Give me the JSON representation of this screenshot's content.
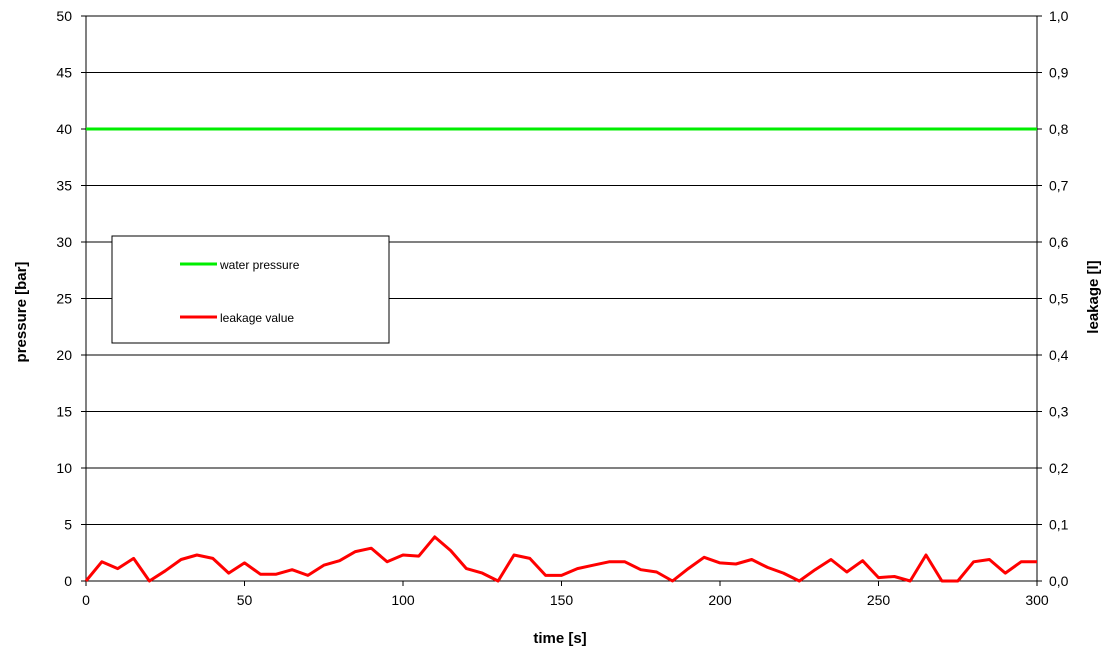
{
  "chart_data": {
    "type": "line",
    "title": "",
    "xlabel": "time [s]",
    "ylabel_left": "pressure [bar]",
    "ylabel_right": "leakage [l]",
    "xlim": [
      0,
      300
    ],
    "ylim_left": [
      0,
      50
    ],
    "ylim_right": [
      0,
      1.0
    ],
    "x_ticks": [
      "0",
      "50",
      "100",
      "150",
      "200",
      "250",
      "300"
    ],
    "y_left_ticks": [
      "0",
      "5",
      "10",
      "15",
      "20",
      "25",
      "30",
      "35",
      "40",
      "45",
      "50"
    ],
    "y_right_ticks": [
      "0,0",
      "0,1",
      "0,2",
      "0,3",
      "0,4",
      "0,5",
      "0,6",
      "0,7",
      "0,8",
      "0,9",
      "1,0"
    ],
    "grid": "horizontal",
    "legend_position": "left-middle",
    "series": [
      {
        "name": "water pressure",
        "axis": "left",
        "color": "#00ee00",
        "x": [
          0,
          50,
          100,
          150,
          200,
          250,
          300
        ],
        "values": [
          40,
          40,
          40,
          40,
          40,
          40,
          40
        ]
      },
      {
        "name": "leakage value",
        "axis": "left",
        "color": "#ff0000",
        "x": [
          0,
          5,
          10,
          15,
          20,
          25,
          30,
          35,
          40,
          45,
          50,
          55,
          60,
          65,
          70,
          75,
          80,
          85,
          90,
          95,
          100,
          105,
          110,
          115,
          120,
          125,
          130,
          135,
          140,
          145,
          150,
          155,
          160,
          165,
          170,
          175,
          180,
          185,
          190,
          195,
          200,
          205,
          210,
          215,
          220,
          225,
          230,
          235,
          240,
          245,
          250,
          255,
          260,
          265,
          270,
          275,
          280,
          285,
          290,
          295,
          300
        ],
        "values": [
          0.0,
          1.7,
          1.1,
          2.0,
          0.0,
          0.9,
          1.9,
          2.3,
          2.0,
          0.7,
          1.6,
          0.6,
          0.6,
          1.0,
          0.5,
          1.4,
          1.8,
          2.6,
          2.9,
          1.7,
          2.3,
          2.2,
          3.9,
          2.7,
          1.1,
          0.7,
          0.0,
          2.3,
          2.0,
          0.5,
          0.5,
          1.1,
          1.4,
          1.7,
          1.7,
          1.0,
          0.8,
          0.0,
          1.1,
          2.1,
          1.6,
          1.5,
          1.9,
          1.2,
          0.7,
          0.0,
          1.0,
          1.9,
          0.8,
          1.8,
          0.3,
          0.4,
          0.0,
          2.3,
          0.0,
          0.0,
          1.7,
          1.9,
          0.7,
          1.7,
          1.7
        ]
      }
    ]
  }
}
